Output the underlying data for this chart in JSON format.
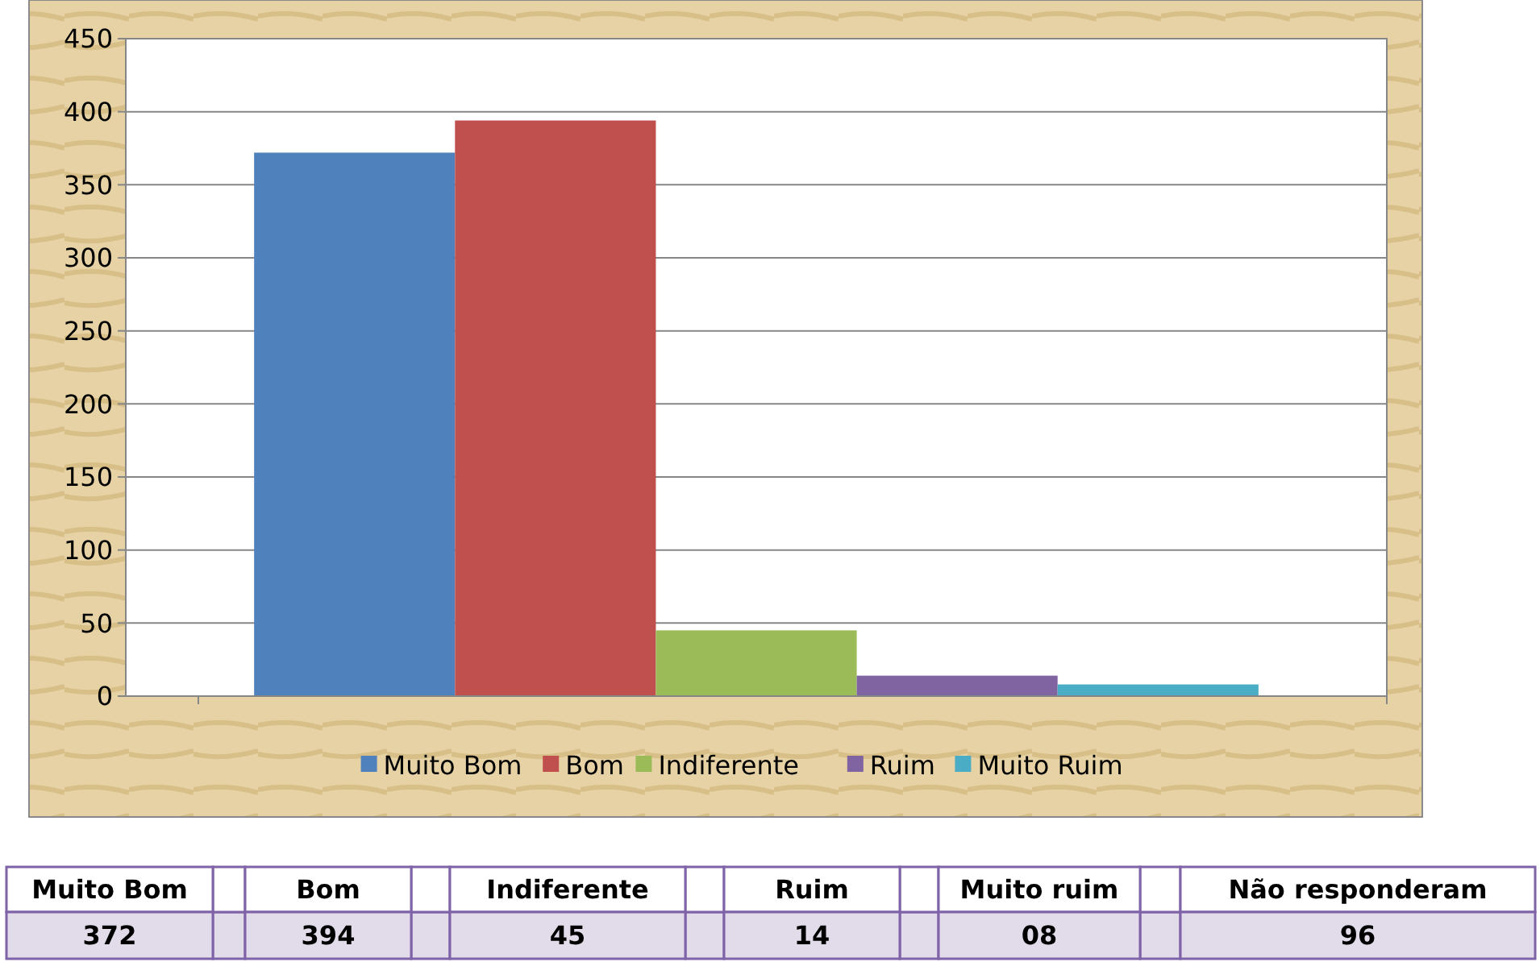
{
  "chart_data": {
    "type": "bar",
    "categories": [
      null
    ],
    "series": [
      {
        "name": "Muito Bom",
        "color": "#4f81bd",
        "values": [
          372
        ]
      },
      {
        "name": "Bom",
        "color": "#c0504d",
        "values": [
          394
        ]
      },
      {
        "name": "Indiferente",
        "color": "#9bbb59",
        "values": [
          45
        ]
      },
      {
        "name": "Ruim",
        "color": "#8064a2",
        "values": [
          14
        ]
      },
      {
        "name": "Muito Ruim",
        "color": "#4bacc6",
        "values": [
          8
        ]
      }
    ],
    "ylim": [
      0,
      450
    ],
    "yticks": [
      0,
      50,
      100,
      150,
      200,
      250,
      300,
      350,
      400,
      450
    ],
    "grid": "y",
    "legend": "bottom",
    "annotations": [
      "Muito Bom",
      "Bom",
      "Indiferente",
      "Ruim",
      "Muito ruim",
      "Não responderam",
      "372",
      "394",
      "45",
      "14",
      "08",
      "96"
    ]
  }
}
